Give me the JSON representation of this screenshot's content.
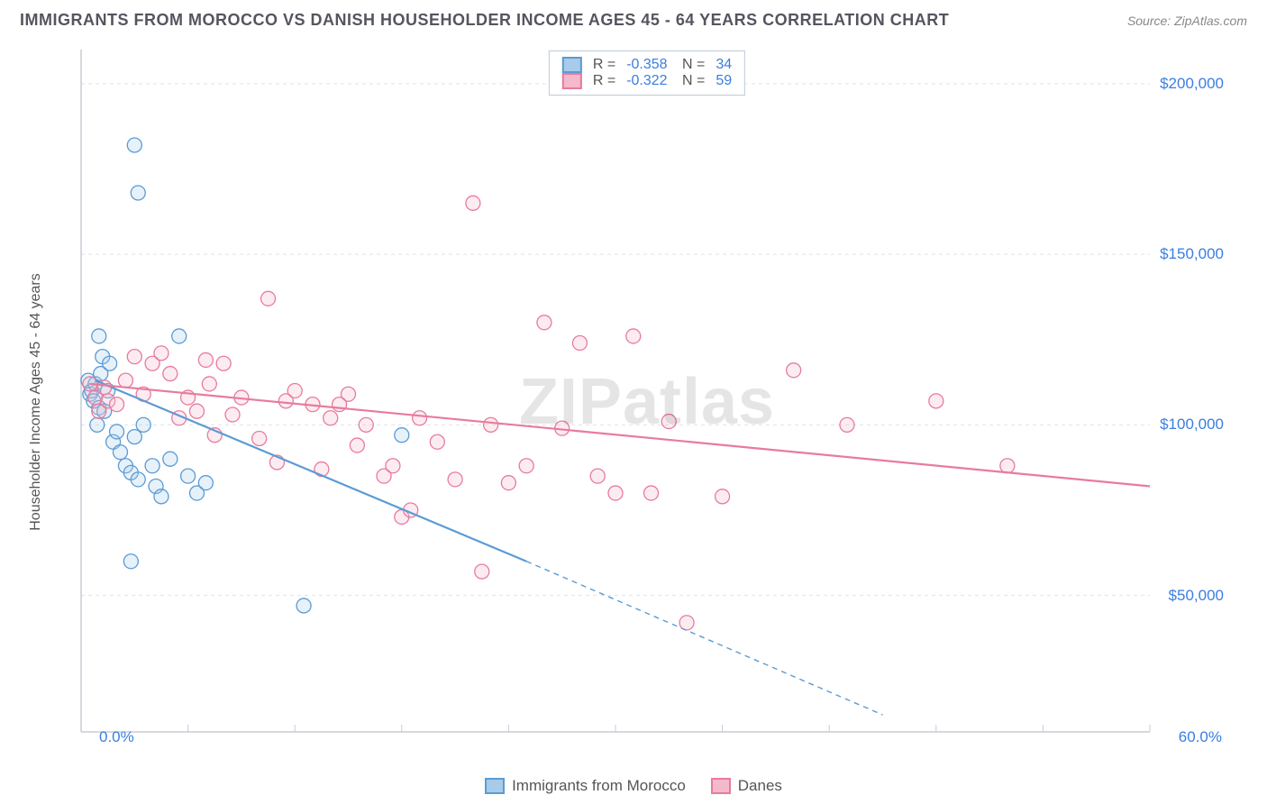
{
  "header": {
    "title": "IMMIGRANTS FROM MOROCCO VS DANISH HOUSEHOLDER INCOME AGES 45 - 64 YEARS CORRELATION CHART",
    "source": "Source: ZipAtlas.com"
  },
  "watermark": {
    "bold": "ZIP",
    "rest": "atlas"
  },
  "chart": {
    "type": "scatter",
    "ylabel": "Householder Income Ages 45 - 64 years",
    "xlim": [
      0,
      60
    ],
    "ylim": [
      10000,
      210000
    ],
    "x_axis_labels": {
      "min": "0.0%",
      "max": "60.0%"
    },
    "y_ticks": [
      50000,
      100000,
      150000,
      200000
    ],
    "y_tick_labels": [
      "$50,000",
      "$100,000",
      "$150,000",
      "$200,000"
    ],
    "x_minor_ticks": [
      6,
      12,
      18,
      24,
      30,
      36,
      42,
      48,
      54,
      60
    ],
    "background_color": "#ffffff",
    "grid_color": "#e0e3e8",
    "axis_color": "#c7ccd3",
    "marker_radius": 8,
    "marker_fill_opacity": 0.28,
    "marker_stroke_width": 1.3,
    "line_width": 2.2,
    "series": [
      {
        "key": "morocco",
        "label": "Immigrants from Morocco",
        "color": "#5b9bd5",
        "fill": "#a8cbea",
        "R": "-0.358",
        "N": "34",
        "trend": {
          "x1": 0.8,
          "y1": 113000,
          "x2": 25,
          "y2": 60000,
          "extrap_x2": 45,
          "extrap_y2": 15000
        },
        "points": [
          [
            0.4,
            113000
          ],
          [
            0.5,
            109000
          ],
          [
            0.6,
            110000
          ],
          [
            0.7,
            107000
          ],
          [
            0.8,
            112000
          ],
          [
            1.0,
            105000
          ],
          [
            1.1,
            115000
          ],
          [
            1.2,
            120000
          ],
          [
            1.3,
            104000
          ],
          [
            1.5,
            110000
          ],
          [
            1.6,
            118000
          ],
          [
            1.0,
            126000
          ],
          [
            0.9,
            100000
          ],
          [
            1.8,
            95000
          ],
          [
            2.0,
            98000
          ],
          [
            2.2,
            92000
          ],
          [
            2.5,
            88000
          ],
          [
            2.8,
            86000
          ],
          [
            3.0,
            96500
          ],
          [
            3.2,
            84000
          ],
          [
            3.5,
            100000
          ],
          [
            4.0,
            88000
          ],
          [
            4.2,
            82000
          ],
          [
            4.5,
            79000
          ],
          [
            5.0,
            90000
          ],
          [
            5.5,
            126000
          ],
          [
            6.0,
            85000
          ],
          [
            6.5,
            80000
          ],
          [
            3.0,
            182000
          ],
          [
            3.2,
            168000
          ],
          [
            2.8,
            60000
          ],
          [
            12.5,
            47000
          ],
          [
            18.0,
            97000
          ],
          [
            7.0,
            83000
          ]
        ]
      },
      {
        "key": "danes",
        "label": "Danes",
        "color": "#e87b9c",
        "fill": "#f4b9cb",
        "R": "-0.322",
        "N": "59",
        "trend": {
          "x1": 0.5,
          "y1": 112000,
          "x2": 60,
          "y2": 82000
        },
        "points": [
          [
            0.5,
            112000
          ],
          [
            0.8,
            108000
          ],
          [
            1.0,
            104000
          ],
          [
            1.3,
            111000
          ],
          [
            1.5,
            107000
          ],
          [
            2.0,
            106000
          ],
          [
            2.5,
            113000
          ],
          [
            3.0,
            120000
          ],
          [
            3.5,
            109000
          ],
          [
            4.0,
            118000
          ],
          [
            4.5,
            121000
          ],
          [
            5.0,
            115000
          ],
          [
            5.5,
            102000
          ],
          [
            6.0,
            108000
          ],
          [
            6.5,
            104000
          ],
          [
            7.0,
            119000
          ],
          [
            7.5,
            97000
          ],
          [
            8.0,
            118000
          ],
          [
            8.5,
            103000
          ],
          [
            9.0,
            108000
          ],
          [
            10.0,
            96000
          ],
          [
            10.5,
            137000
          ],
          [
            11.0,
            89000
          ],
          [
            12.0,
            110000
          ],
          [
            13.0,
            106000
          ],
          [
            13.5,
            87000
          ],
          [
            14.0,
            102000
          ],
          [
            15.0,
            109000
          ],
          [
            15.5,
            94000
          ],
          [
            16.0,
            100000
          ],
          [
            17.0,
            85000
          ],
          [
            17.5,
            88000
          ],
          [
            18.0,
            73000
          ],
          [
            18.5,
            75000
          ],
          [
            19.0,
            102000
          ],
          [
            20.0,
            95000
          ],
          [
            21.0,
            84000
          ],
          [
            22.0,
            165000
          ],
          [
            22.5,
            57000
          ],
          [
            23.0,
            100000
          ],
          [
            24.0,
            83000
          ],
          [
            25.0,
            88000
          ],
          [
            26.0,
            130000
          ],
          [
            27.0,
            99000
          ],
          [
            28.0,
            124000
          ],
          [
            29.0,
            85000
          ],
          [
            30.0,
            80000
          ],
          [
            31.0,
            126000
          ],
          [
            32.0,
            80000
          ],
          [
            33.0,
            101000
          ],
          [
            34.0,
            42000
          ],
          [
            36.0,
            79000
          ],
          [
            40.0,
            116000
          ],
          [
            43.0,
            100000
          ],
          [
            48.0,
            107000
          ],
          [
            52.0,
            88000
          ],
          [
            7.2,
            112000
          ],
          [
            11.5,
            107000
          ],
          [
            14.5,
            106000
          ]
        ]
      }
    ],
    "legend_bottom": [
      {
        "key": "morocco",
        "label": "Immigrants from Morocco"
      },
      {
        "key": "danes",
        "label": "Danes"
      }
    ]
  }
}
